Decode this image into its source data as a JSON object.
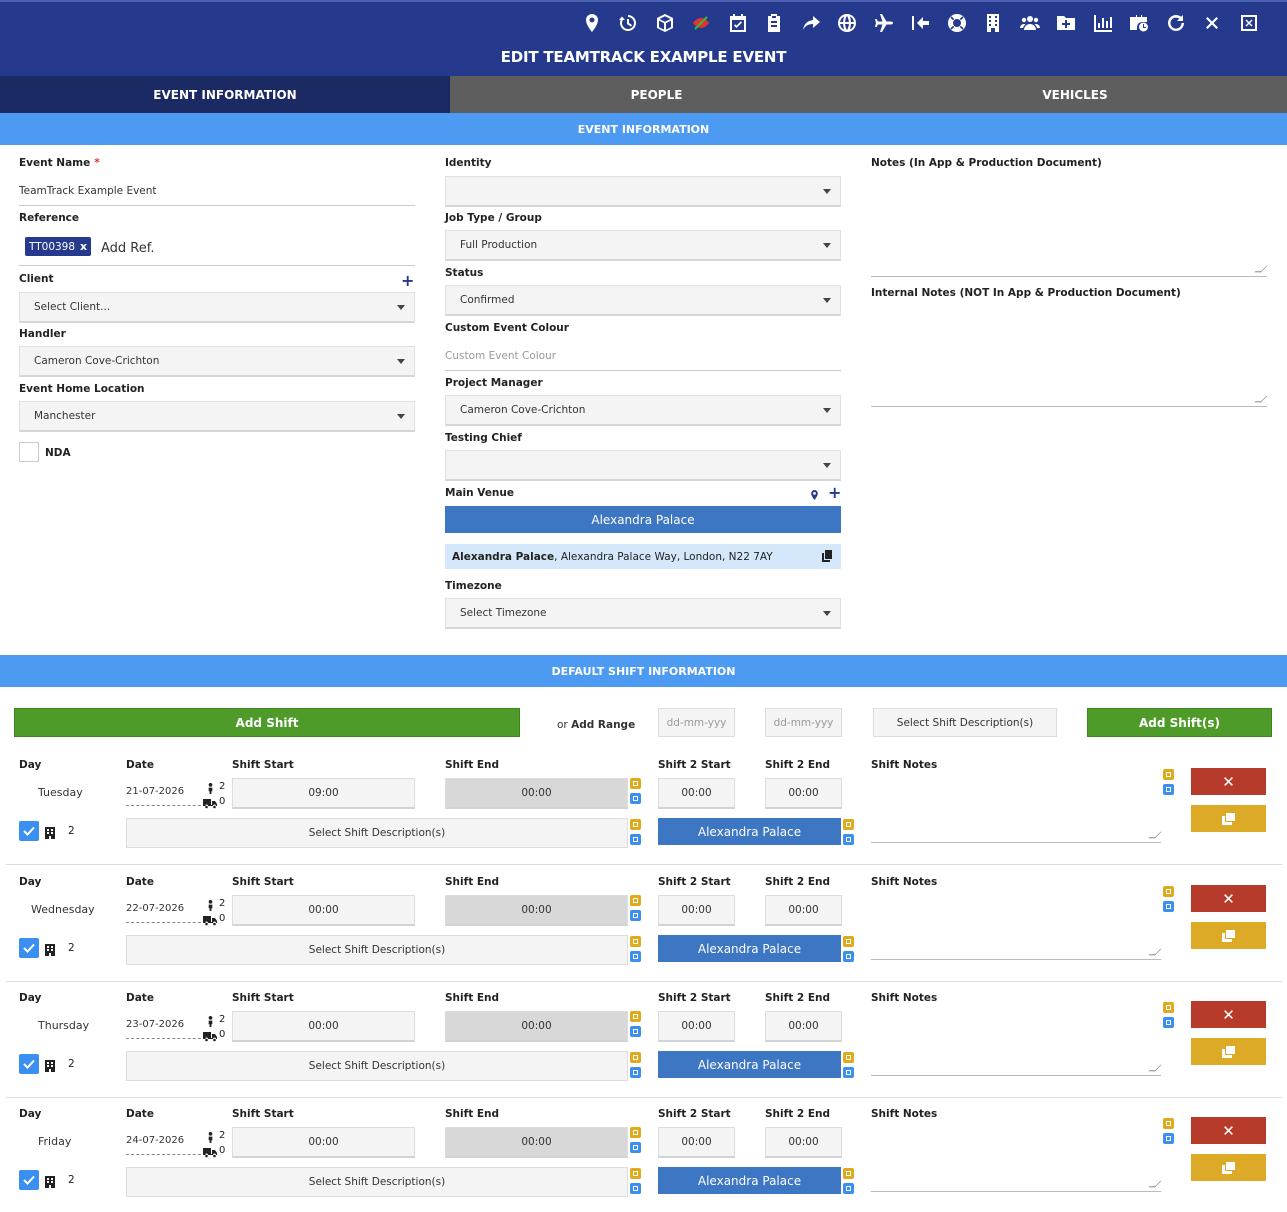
{
  "header": {
    "title": "EDIT TEAMTRACK EXAMPLE EVENT",
    "icons": [
      "map-pin-icon",
      "history-icon",
      "cube-icon",
      "eye-slash-icon",
      "calendar-check-icon",
      "clipboard-icon",
      "share-icon",
      "globe-icon",
      "plane-icon",
      "arrow-left-bar-icon",
      "life-ring-icon",
      "building-icon",
      "users-icon",
      "folder-plus-icon",
      "chart-bar-icon",
      "briefcase-clock-icon",
      "refresh-icon",
      "close-icon",
      "window-close-icon"
    ]
  },
  "tabs": [
    {
      "label": "EVENT INFORMATION",
      "active": true
    },
    {
      "label": "PEOPLE",
      "active": false
    },
    {
      "label": "VEHICLES",
      "active": false
    }
  ],
  "event_section_title": "EVENT INFORMATION",
  "form": {
    "event_name_label": "Event Name",
    "event_name_required": "*",
    "event_name_value": "TeamTrack Example Event",
    "reference_label": "Reference",
    "reference_chip": "TT00398",
    "reference_chip_remove": "x",
    "reference_placeholder": "Add Ref.",
    "client_label": "Client",
    "client_value": "Select Client...",
    "handler_label": "Handler",
    "handler_value": "Cameron Cove-Crichton",
    "home_location_label": "Event Home Location",
    "home_location_value": "Manchester",
    "nda_label": "NDA",
    "identity_label": "Identity",
    "identity_value": "",
    "job_type_label": "Job Type / Group",
    "job_type_value": "Full Production",
    "status_label": "Status",
    "status_value": "Confirmed",
    "custom_colour_label": "Custom Event Colour",
    "custom_colour_placeholder": "Custom Event Colour",
    "project_manager_label": "Project Manager",
    "project_manager_value": "Cameron Cove-Crichton",
    "testing_chief_label": "Testing Chief",
    "testing_chief_value": "",
    "main_venue_label": "Main Venue",
    "main_venue_button": "Alexandra Palace",
    "main_venue_name": "Alexandra Palace",
    "main_venue_address": ", Alexandra Palace Way, London, N22 7AY",
    "timezone_label": "Timezone",
    "timezone_value": "Select Timezone",
    "notes_label": "Notes (In App & Production Document)",
    "internal_notes_label": "Internal Notes (NOT In App & Production Document)"
  },
  "shift_section_title": "DEFAULT SHIFT INFORMATION",
  "shift_toolbar": {
    "add_shift": "Add Shift",
    "or_text": "or ",
    "add_range": "Add Range",
    "date_from_placeholder": "dd-mm-yyy",
    "date_to_placeholder": "dd-mm-yyy",
    "select_desc": "Select Shift Description(s)",
    "add_shifts": "Add Shift(s)"
  },
  "shift_labels": {
    "day": "Day",
    "date": "Date",
    "shift_start": "Shift Start",
    "shift_end": "Shift End",
    "shift2_start": "Shift 2 Start",
    "shift2_end": "Shift 2 End",
    "shift_notes": "Shift Notes",
    "select_desc": "Select Shift Description(s)",
    "remove": "✕"
  },
  "shifts": [
    {
      "day": "Tuesday",
      "date": "21-07-2026",
      "people": "2",
      "vehicles": "0",
      "start": "09:00",
      "end": "00:00",
      "start2": "00:00",
      "end2": "00:00",
      "rooms": "2",
      "venue": "Alexandra Palace"
    },
    {
      "day": "Wednesday",
      "date": "22-07-2026",
      "people": "2",
      "vehicles": "0",
      "start": "00:00",
      "end": "00:00",
      "start2": "00:00",
      "end2": "00:00",
      "rooms": "2",
      "venue": "Alexandra Palace"
    },
    {
      "day": "Thursday",
      "date": "23-07-2026",
      "people": "2",
      "vehicles": "0",
      "start": "00:00",
      "end": "00:00",
      "start2": "00:00",
      "end2": "00:00",
      "rooms": "2",
      "venue": "Alexandra Palace"
    },
    {
      "day": "Friday",
      "date": "24-07-2026",
      "people": "2",
      "vehicles": "0",
      "start": "00:00",
      "end": "00:00",
      "start2": "00:00",
      "end2": "00:00",
      "rooms": "2",
      "venue": "Alexandra Palace"
    }
  ],
  "colors": {
    "header_bg": "#253a8c",
    "tab_active": "#1b2a63",
    "tab_inactive": "#5e5e5e",
    "section_bar": "#4d9af2",
    "green": "#4e9b2a",
    "venue_blue": "#3d76c2",
    "red": "#b63b2a",
    "yellow": "#dcaa27"
  }
}
